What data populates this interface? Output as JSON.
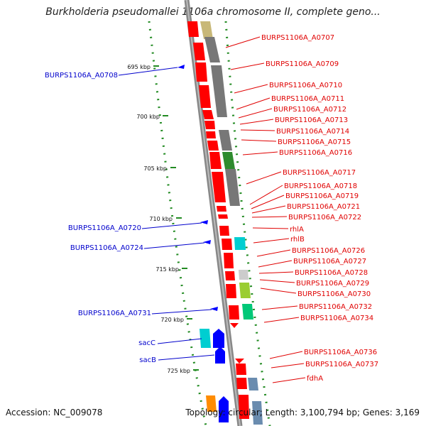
{
  "title": "Burkholderia pseudomallei 1106a chromosome II, complete geno...",
  "accession": "Accession: NC_009078",
  "summary": "Topology: circular; Length: 3,100,794 bp; Genes: 3,169",
  "ticks": [
    "695 kbp",
    "700 kbp",
    "705 kbp",
    "710 kbp",
    "715 kbp",
    "720 kbp",
    "725 kbp"
  ],
  "labels_right": [
    "BURPS1106A_A0707",
    "BURPS1106A_A0709",
    "BURPS1106A_A0710",
    "BURPS1106A_A0711",
    "BURPS1106A_A0712",
    "BURPS1106A_A0713",
    "BURPS1106A_A0714",
    "BURPS1106A_A0715",
    "BURPS1106A_A0716",
    "BURPS1106A_A0717",
    "BURPS1106A_A0718",
    "BURPS1106A_A0719",
    "BURPS1106A_A0721",
    "BURPS1106A_A0722",
    "rhlA",
    "rhlB",
    "BURPS1106A_A0726",
    "BURPS1106A_A0727",
    "BURPS1106A_A0728",
    "BURPS1106A_A0729",
    "BURPS1106A_A0730",
    "BURPS1106A_A0732",
    "BURPS1106A_A0734",
    "BURPS1106A_A0736",
    "BURPS1106A_A0737",
    "fdhA"
  ],
  "labels_left": [
    "BURPS1106A_A0708",
    "BURPS1106A_A0720",
    "BURPS1106A_A0724",
    "BURPS1106A_A0731",
    "sacC",
    "sacB"
  ],
  "colors": {
    "forward_gene": "#ff0000",
    "reverse_gene": "#0000ff",
    "backbone": "#999999",
    "label_forward": "#e00000",
    "label_reverse": "#0000cc",
    "gc_dots": "#228b22"
  }
}
